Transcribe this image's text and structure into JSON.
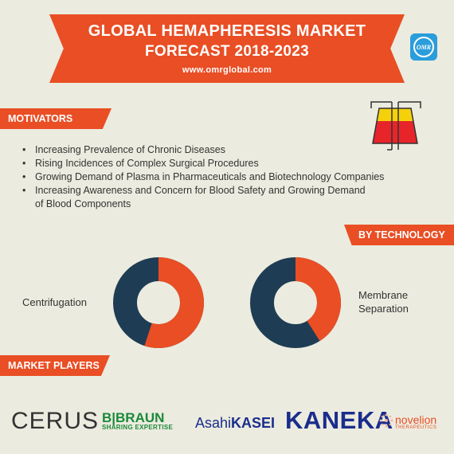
{
  "header": {
    "title_line1": "GLOBAL HEMAPHERESIS MARKET",
    "title_line2": "FORECAST 2018-2023",
    "website": "www.omrglobal.com",
    "logo_text": "OMR"
  },
  "motivators": {
    "heading": "MOTIVATORS",
    "items": [
      "Increasing Prevalence of Chronic Diseases",
      "Rising Incidences of Complex Surgical Procedures",
      "Growing Demand of Plasma in Pharmaceuticals and Biotechnology Companies",
      "Increasing Awareness and Concern for Blood Safety and Growing Demand",
      "of Blood Components"
    ]
  },
  "technology": {
    "heading": "BY TECHNOLOGY",
    "charts": [
      {
        "label": "Centrifugation",
        "highlight_fraction": 0.55
      },
      {
        "label_line1": "Membrane",
        "label_line2": "Separation",
        "highlight_fraction": 0.41
      }
    ]
  },
  "players": {
    "heading": "MARKET PLAYERS",
    "logos": {
      "cerus": "CERUS",
      "braun_main": "B|BRAUN",
      "braun_sub": "SHARING EXPERTISE",
      "asahi_a": "Asahi",
      "asahi_b": "KASEI",
      "kaneka": "KANEKA",
      "novelion_main": "novelion",
      "novelion_sub": "THERAPEUTICS"
    }
  },
  "colors": {
    "accent": "#e94e24",
    "dark": "#1e3d54",
    "background": "#ecebdf"
  },
  "icons": [
    "omr-logo-icon",
    "blood-separation-icon",
    "novelion-mark-icon"
  ]
}
